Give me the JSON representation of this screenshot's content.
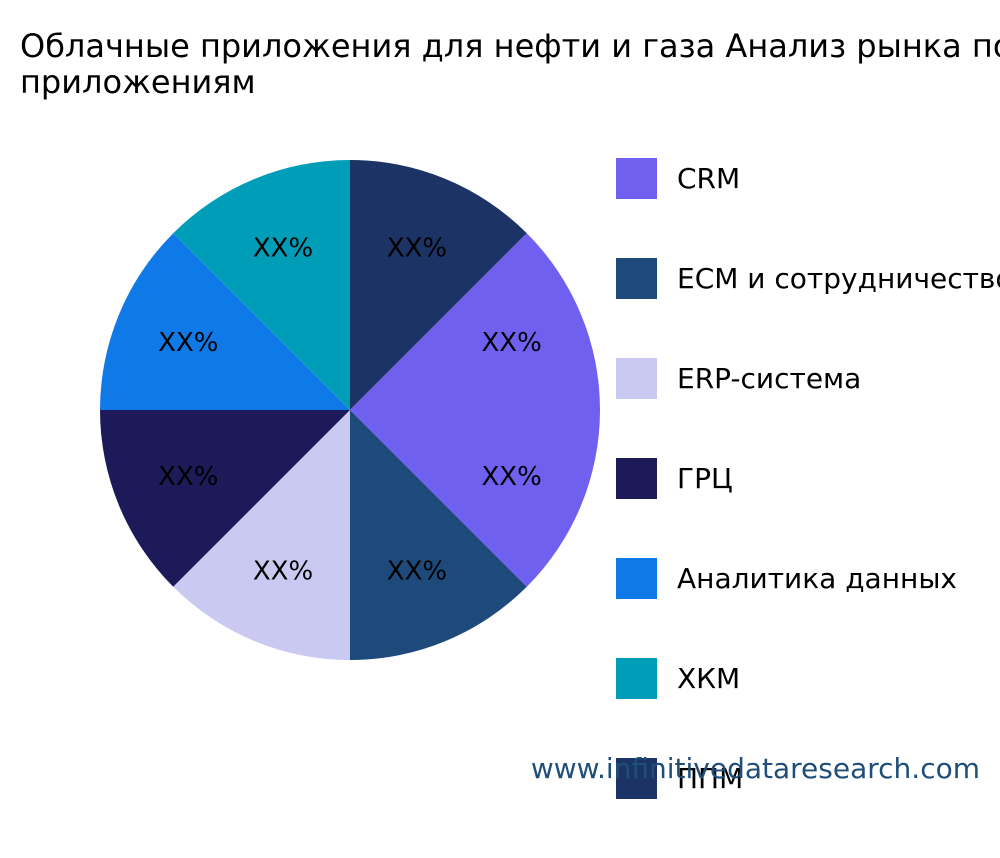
{
  "chart_data": {
    "type": "pie",
    "title_lines": [
      "Облачные приложения для нефти и газа Анализ рынка по",
      "приложениям"
    ],
    "start_angle_deg": 0,
    "direction": "clockwise",
    "slices": [
      {
        "name": "ППМ",
        "value": 12.5,
        "label": "XX%",
        "color": "#1c3366"
      },
      {
        "name": "CRM",
        "value": 25,
        "label": "XX%",
        "color": "#7060f0"
      },
      {
        "name": "ECM и сотрудничество",
        "value": 12.5,
        "label": "XX%",
        "color": "#1e4a7b"
      },
      {
        "name": "ERP-система",
        "value": 12.5,
        "label": "XX%",
        "color": "#c9c9f1"
      },
      {
        "name": "ГРЦ",
        "value": 12.5,
        "label": "XX%",
        "color": "#1c1a59"
      },
      {
        "name": "Аналитика данных",
        "value": 12.5,
        "label": "XX%",
        "color": "#1079e8"
      },
      {
        "name": "ХКМ",
        "value": 12.5,
        "label": "XX%",
        "color": "#009db8"
      }
    ],
    "legend": {
      "placement": "right",
      "items": [
        {
          "label": "CRM",
          "color": "#7060f0"
        },
        {
          "label": "ECM и сотрудничество",
          "color": "#1e4a7b"
        },
        {
          "label": "ERP-система",
          "color": "#c9c9f1"
        },
        {
          "label": "ГРЦ",
          "color": "#1c1a59"
        },
        {
          "label": "Аналитика данных",
          "color": "#1079e8"
        },
        {
          "label": "ХКМ",
          "color": "#009db8"
        },
        {
          "label": "ППМ",
          "color": "#1c3366"
        }
      ]
    }
  },
  "watermark": "www.infinitivedataresearch.com"
}
